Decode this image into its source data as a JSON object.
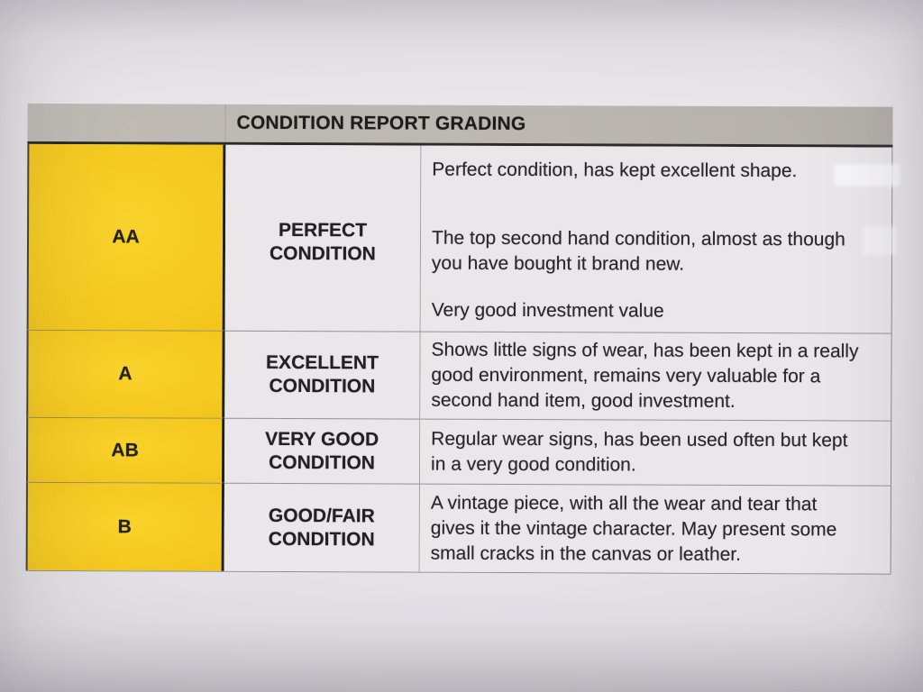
{
  "table": {
    "title": "CONDITION REPORT GRADING",
    "rows": [
      {
        "code": "AA",
        "label": "PERFECT CONDITION",
        "paragraphs": [
          "Perfect condition, has kept excellent shape.",
          "The top second hand condition, almost as though you have bought it brand new.",
          "Very good investment value"
        ]
      },
      {
        "code": "A",
        "label": "EXCELLENT CONDITION",
        "paragraphs": [
          "Shows little signs of wear, has been kept in a really good environment, remains very valuable for a second hand item, good investment."
        ]
      },
      {
        "code": "AB",
        "label": "VERY GOOD CONDITION",
        "paragraphs": [
          "Regular wear signs, has been used often but kept in a very good condition."
        ]
      },
      {
        "code": "B",
        "label": "GOOD/FAIR CONDITION",
        "paragraphs": [
          "A vintage piece, with all the wear and tear that gives it the vintage character. May present some small cracks in the canvas or leather."
        ]
      }
    ],
    "colors": {
      "grade_column_bg": "#f4c81f",
      "header_bg": "#bcb8b1",
      "cell_bg": "#eae7ea",
      "paper_bg": "#e7e5e9",
      "text": "#262626"
    }
  }
}
